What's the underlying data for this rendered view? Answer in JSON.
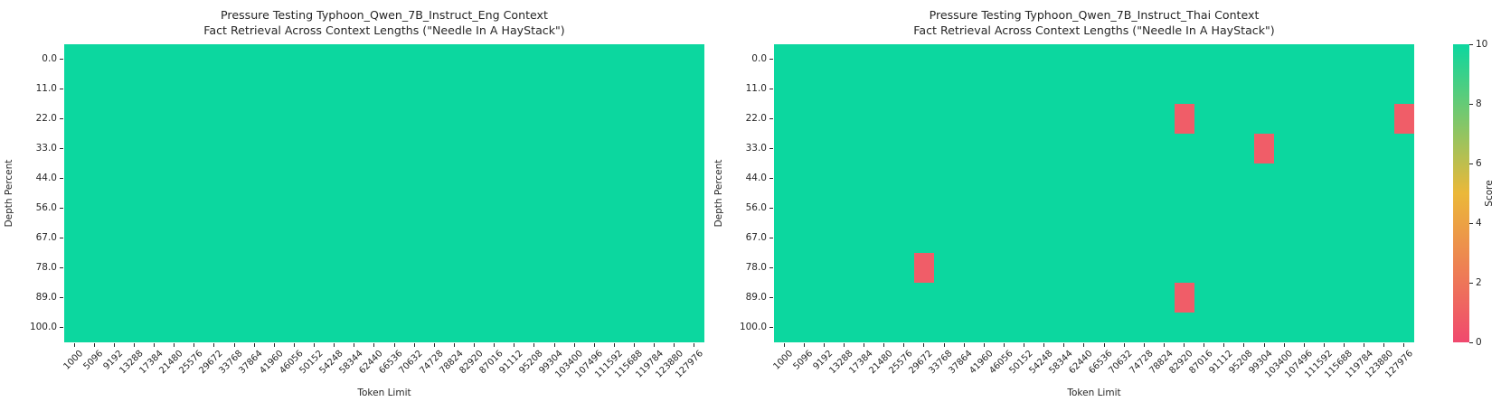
{
  "figure": {
    "background": "#ffffff",
    "text_color": "#262626",
    "colors": {
      "high": "#0cd79f",
      "low": "#f05d68"
    },
    "colorbar": {
      "label": "Score",
      "ticks": [
        "0",
        "2",
        "4",
        "6",
        "8",
        "10"
      ],
      "min": 0,
      "max": 10,
      "gradient": [
        "#f0496e",
        "#ebb839",
        "#0cd79f"
      ],
      "position": "right"
    }
  },
  "chart_data": [
    {
      "type": "heatmap",
      "title_line1": "Pressure Testing Typhoon_Qwen_7B_Instruct_Eng Context",
      "title_line2": "Fact Retrieval Across Context Lengths (\"Needle In A HayStack\")",
      "xlabel": "Token Limit",
      "ylabel": "Depth Percent",
      "x_categories": [
        "1000",
        "5096",
        "9192",
        "13288",
        "17384",
        "21480",
        "25576",
        "29672",
        "33768",
        "37864",
        "41960",
        "46056",
        "50152",
        "54248",
        "58344",
        "62440",
        "66536",
        "70632",
        "74728",
        "78824",
        "82920",
        "87016",
        "91112",
        "95208",
        "99304",
        "103400",
        "107496",
        "111592",
        "115688",
        "119784",
        "123880",
        "127976"
      ],
      "y_categories": [
        "0.0",
        "11.0",
        "22.0",
        "33.0",
        "44.0",
        "56.0",
        "67.0",
        "78.0",
        "89.0",
        "100.0"
      ],
      "score_range": [
        0,
        10
      ],
      "default_score": 10,
      "cells_overridden": []
    },
    {
      "type": "heatmap",
      "title_line1": "Pressure Testing Typhoon_Qwen_7B_Instruct_Thai Context",
      "title_line2": "Fact Retrieval Across Context Lengths (\"Needle In A HayStack\")",
      "xlabel": "Token Limit",
      "ylabel": "Depth Percent",
      "x_categories": [
        "1000",
        "5096",
        "9192",
        "13288",
        "17384",
        "21480",
        "25576",
        "29672",
        "33768",
        "37864",
        "41960",
        "46056",
        "50152",
        "54248",
        "58344",
        "62440",
        "66536",
        "70632",
        "74728",
        "78824",
        "82920",
        "87016",
        "91112",
        "95208",
        "99304",
        "103400",
        "107496",
        "111592",
        "115688",
        "119784",
        "123880",
        "127976"
      ],
      "y_categories": [
        "0.0",
        "11.0",
        "22.0",
        "33.0",
        "44.0",
        "56.0",
        "67.0",
        "78.0",
        "89.0",
        "100.0"
      ],
      "score_range": [
        0,
        10
      ],
      "default_score": 10,
      "cells_overridden": [
        {
          "depth": "22.0",
          "token_limit": "82920",
          "score": 0
        },
        {
          "depth": "22.0",
          "token_limit": "127976",
          "score": 0
        },
        {
          "depth": "33.0",
          "token_limit": "99304",
          "score": 0
        },
        {
          "depth": "78.0",
          "token_limit": "29672",
          "score": 0
        },
        {
          "depth": "89.0",
          "token_limit": "82920",
          "score": 0
        }
      ]
    }
  ]
}
